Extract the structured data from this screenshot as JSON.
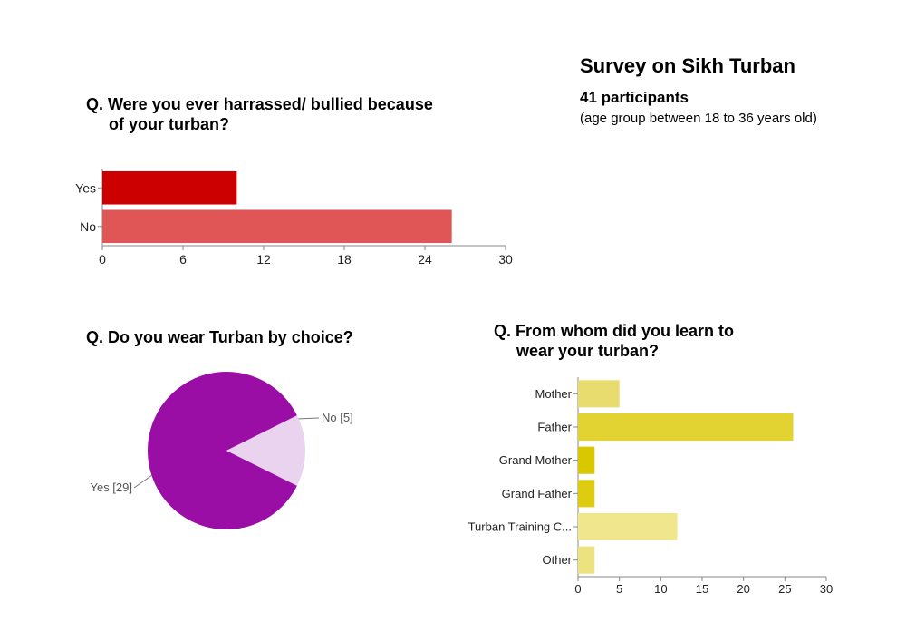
{
  "header": {
    "title": "Survey on Sikh Turban",
    "participants": "41 participants",
    "age_note": "(age group between 18 to 36 years old)"
  },
  "questions": {
    "q1_line1": "Q. Were you ever harrassed/ bullied because",
    "q1_line2": "of your turban?",
    "q2": "Q. Do you wear Turban by choice?",
    "q3_line1": "Q.  From whom did you learn to",
    "q3_line2": "wear your  turban?"
  },
  "chart_data": [
    {
      "type": "bar",
      "orientation": "horizontal",
      "categories": [
        "Yes",
        "No"
      ],
      "values": [
        10,
        26
      ],
      "colors": [
        "#cc0000",
        "#e05555"
      ],
      "xlim": [
        0,
        30
      ],
      "xticks": [
        0,
        6,
        12,
        18,
        24,
        30
      ],
      "grid": false
    },
    {
      "type": "pie",
      "labels": [
        "Yes [29]",
        "No [5]"
      ],
      "categories": [
        "Yes",
        "No"
      ],
      "values": [
        29,
        5
      ],
      "colors": [
        "#9a0ea6",
        "#e9d3ee"
      ]
    },
    {
      "type": "bar",
      "orientation": "horizontal",
      "categories": [
        "Mother",
        "Father",
        "Grand Mother",
        "Grand Father",
        "Turban Training C...",
        "Other"
      ],
      "values": [
        5,
        26,
        2,
        2,
        12,
        2
      ],
      "colors": [
        "#e8dc6e",
        "#e2d232",
        "#d9c700",
        "#ddcc10",
        "#efe68e",
        "#ece27f"
      ],
      "xlim": [
        0,
        30
      ],
      "xticks": [
        0,
        5,
        10,
        15,
        20,
        25,
        30
      ],
      "grid": false
    }
  ]
}
